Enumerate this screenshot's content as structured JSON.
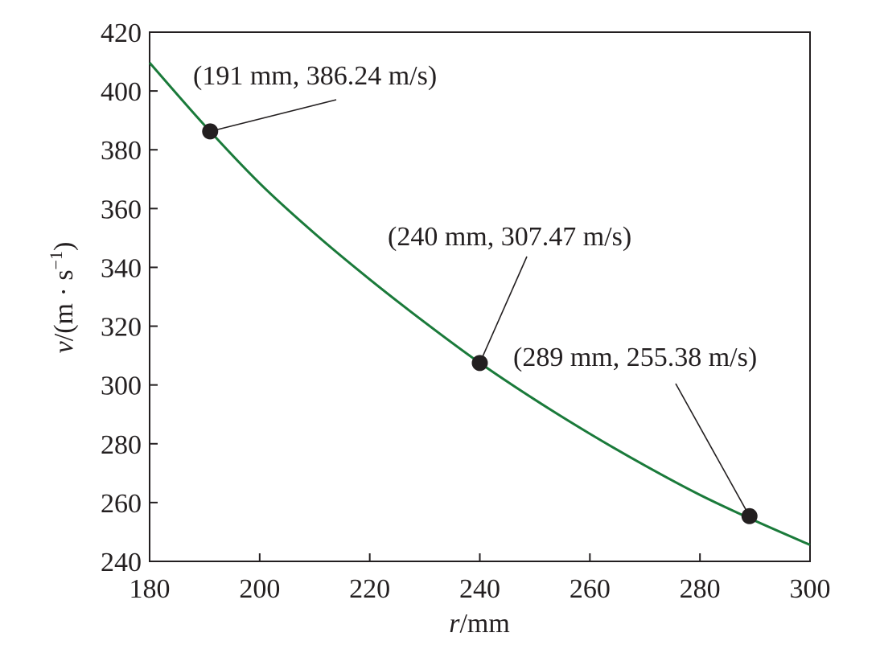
{
  "chart_data": {
    "type": "line",
    "xlabel_var": "r",
    "xlabel_unit": "/mm",
    "ylabel_var": "v",
    "ylabel_unit_pre": "/(m · s",
    "ylabel_unit_sup": "−1",
    "ylabel_unit_post": ")",
    "xlim": [
      180,
      300
    ],
    "ylim": [
      240,
      420
    ],
    "xticks": [
      180,
      200,
      220,
      240,
      260,
      280,
      300
    ],
    "yticks": [
      240,
      260,
      280,
      300,
      320,
      340,
      360,
      380,
      400,
      420
    ],
    "grid": false,
    "series": [
      {
        "color": "#1a7a3a",
        "x": [
          180,
          190,
          200,
          210,
          220,
          230,
          240,
          250,
          260,
          270,
          280,
          290,
          300
        ],
        "y": [
          409.6,
          388.3,
          368.6,
          351.5,
          335.9,
          321.3,
          307.5,
          295.0,
          283.4,
          272.6,
          262.6,
          253.8,
          245.6
        ]
      }
    ],
    "points": [
      {
        "x": 191,
        "y": 386.24,
        "label": "(191 mm, 386.24 m/s)"
      },
      {
        "x": 240,
        "y": 307.47,
        "label": "(240 mm, 307.47 m/s)"
      },
      {
        "x": 289,
        "y": 255.38,
        "label": "(289 mm, 255.38 m/s)"
      }
    ],
    "marker_color": "#231f20"
  }
}
